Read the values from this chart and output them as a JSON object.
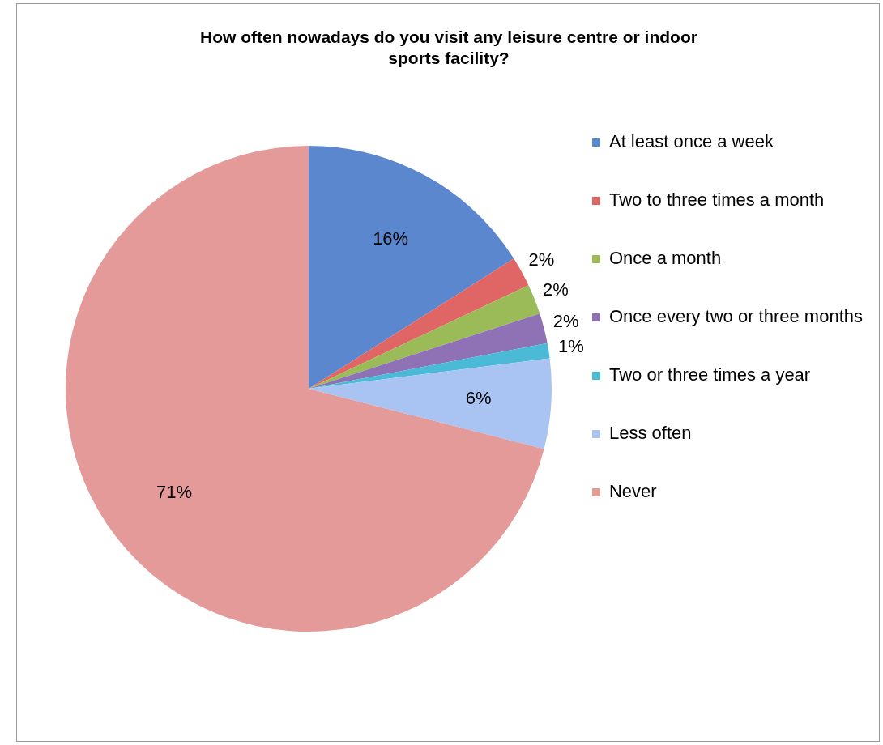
{
  "chart_data": {
    "type": "pie",
    "title": "How often nowadays do you visit any leisure centre or indoor sports facility?",
    "categories": [
      "At least once a week",
      "Two to three times a month",
      "Once a month",
      "Once every two or three months",
      "Two or three times a year",
      "Less often",
      "Never"
    ],
    "values": [
      16,
      2,
      2,
      2,
      1,
      6,
      71
    ],
    "value_labels": [
      "16%",
      "2%",
      "2%",
      "2%",
      "1%",
      "6%",
      "71%"
    ],
    "colors": [
      "#5b87cf",
      "#e06666",
      "#9bbb59",
      "#8e72b5",
      "#4bbad6",
      "#a9c4f2",
      "#e39a98"
    ],
    "legend": "right"
  }
}
